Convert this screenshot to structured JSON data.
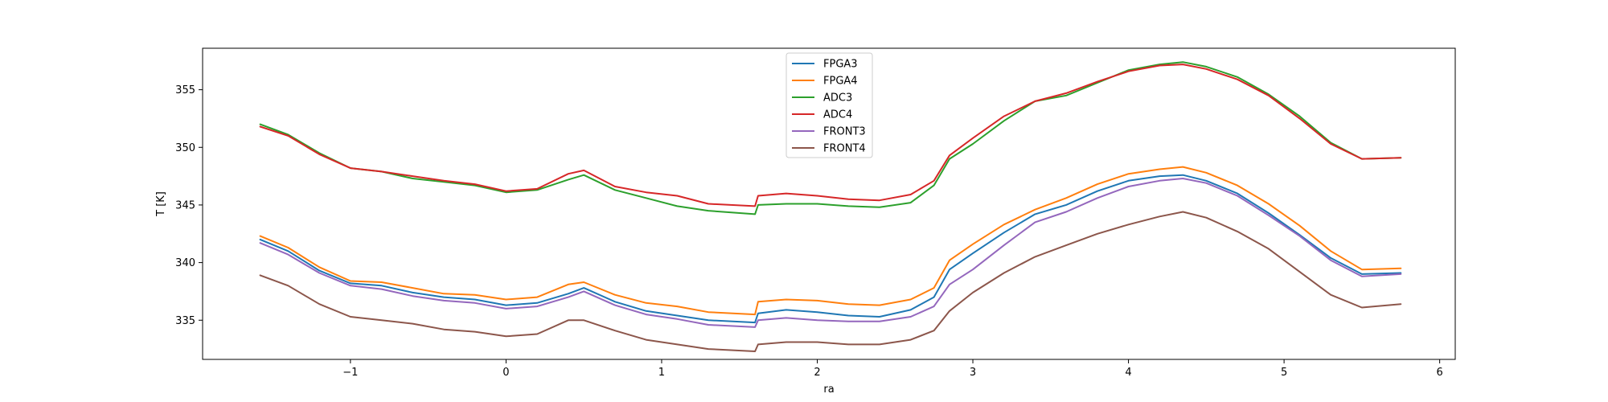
{
  "chart_data": {
    "type": "line",
    "title": "",
    "xlabel": "ra",
    "ylabel": "T [K]",
    "xlim": [
      -1.95,
      6.1
    ],
    "ylim": [
      331.6,
      358.6
    ],
    "xticks": [
      -1,
      0,
      1,
      2,
      3,
      4,
      5,
      6
    ],
    "yticks": [
      335,
      340,
      345,
      350,
      355
    ],
    "xtick_labels": [
      "−1",
      "0",
      "1",
      "2",
      "3",
      "4",
      "5",
      "6"
    ],
    "ytick_labels": [
      "335",
      "340",
      "345",
      "350",
      "355"
    ],
    "grid": false,
    "legend_position": "top-center",
    "x": [
      -1.58,
      -1.4,
      -1.2,
      -1.0,
      -0.8,
      -0.6,
      -0.4,
      -0.2,
      0.0,
      0.2,
      0.4,
      0.5,
      0.7,
      0.9,
      1.1,
      1.3,
      1.6,
      1.62,
      1.8,
      2.0,
      2.2,
      2.4,
      2.6,
      2.75,
      2.85,
      3.0,
      3.2,
      3.4,
      3.6,
      3.8,
      4.0,
      4.2,
      4.35,
      4.5,
      4.7,
      4.9,
      5.1,
      5.3,
      5.5,
      5.75
    ],
    "series": [
      {
        "name": "FPGA3",
        "color": "#1f77b4",
        "values": [
          342.0,
          341.0,
          339.3,
          338.2,
          338.0,
          337.4,
          337.0,
          336.8,
          336.3,
          336.5,
          337.3,
          337.8,
          336.6,
          335.8,
          335.4,
          335.0,
          334.8,
          335.6,
          335.9,
          335.7,
          335.4,
          335.3,
          335.9,
          337.0,
          339.4,
          340.8,
          342.6,
          344.2,
          345.0,
          346.2,
          347.1,
          347.5,
          347.6,
          347.1,
          346.0,
          344.3,
          342.4,
          340.4,
          339.0,
          339.1
        ]
      },
      {
        "name": "FPGA4",
        "color": "#ff7f0e",
        "values": [
          342.3,
          341.3,
          339.6,
          338.4,
          338.3,
          337.8,
          337.3,
          337.2,
          336.8,
          337.0,
          338.1,
          338.3,
          337.2,
          336.5,
          336.2,
          335.7,
          335.5,
          336.6,
          336.8,
          336.7,
          336.4,
          336.3,
          336.8,
          337.8,
          340.2,
          341.6,
          343.3,
          344.6,
          345.6,
          346.8,
          347.7,
          348.1,
          348.3,
          347.8,
          346.7,
          345.1,
          343.2,
          341.0,
          339.4,
          339.5
        ]
      },
      {
        "name": "ADC3",
        "color": "#2ca02c",
        "values": [
          352.0,
          351.1,
          349.5,
          348.2,
          347.9,
          347.3,
          347.0,
          346.7,
          346.1,
          346.3,
          347.2,
          347.6,
          346.3,
          345.6,
          344.9,
          344.5,
          344.2,
          345.0,
          345.1,
          345.1,
          344.9,
          344.8,
          345.2,
          346.7,
          349.0,
          350.3,
          352.3,
          354.0,
          354.5,
          355.6,
          356.7,
          357.2,
          357.4,
          357.0,
          356.1,
          354.6,
          352.7,
          350.4,
          349.0,
          349.1
        ]
      },
      {
        "name": "ADC4",
        "color": "#d62728",
        "values": [
          351.8,
          351.0,
          349.4,
          348.2,
          347.9,
          347.5,
          347.1,
          346.8,
          346.2,
          346.4,
          347.7,
          348.0,
          346.6,
          346.1,
          345.8,
          345.1,
          344.9,
          345.8,
          346.0,
          345.8,
          345.5,
          345.4,
          345.9,
          347.1,
          349.3,
          350.8,
          352.7,
          354.0,
          354.7,
          355.7,
          356.6,
          357.1,
          357.2,
          356.8,
          355.9,
          354.5,
          352.5,
          350.3,
          349.0,
          349.1
        ]
      },
      {
        "name": "FRONT3",
        "color": "#9467bd",
        "values": [
          341.7,
          340.7,
          339.1,
          338.0,
          337.7,
          337.1,
          336.7,
          336.5,
          336.0,
          336.2,
          337.0,
          337.5,
          336.3,
          335.5,
          335.1,
          334.6,
          334.4,
          335.0,
          335.2,
          335.0,
          334.9,
          334.9,
          335.3,
          336.2,
          338.1,
          339.4,
          341.5,
          343.5,
          344.4,
          345.6,
          346.6,
          347.1,
          347.3,
          346.9,
          345.8,
          344.1,
          342.3,
          340.2,
          338.8,
          339.0
        ]
      },
      {
        "name": "FRONT4",
        "color": "#8c564b",
        "values": [
          338.9,
          338.0,
          336.4,
          335.3,
          335.0,
          334.7,
          334.2,
          334.0,
          333.6,
          333.8,
          335.0,
          335.0,
          334.1,
          333.3,
          332.9,
          332.5,
          332.3,
          332.9,
          333.1,
          333.1,
          332.9,
          332.9,
          333.3,
          334.1,
          335.8,
          337.4,
          339.1,
          340.5,
          341.5,
          342.5,
          343.3,
          344.0,
          344.4,
          343.9,
          342.7,
          341.2,
          339.2,
          337.2,
          336.1,
          336.4
        ]
      }
    ]
  }
}
